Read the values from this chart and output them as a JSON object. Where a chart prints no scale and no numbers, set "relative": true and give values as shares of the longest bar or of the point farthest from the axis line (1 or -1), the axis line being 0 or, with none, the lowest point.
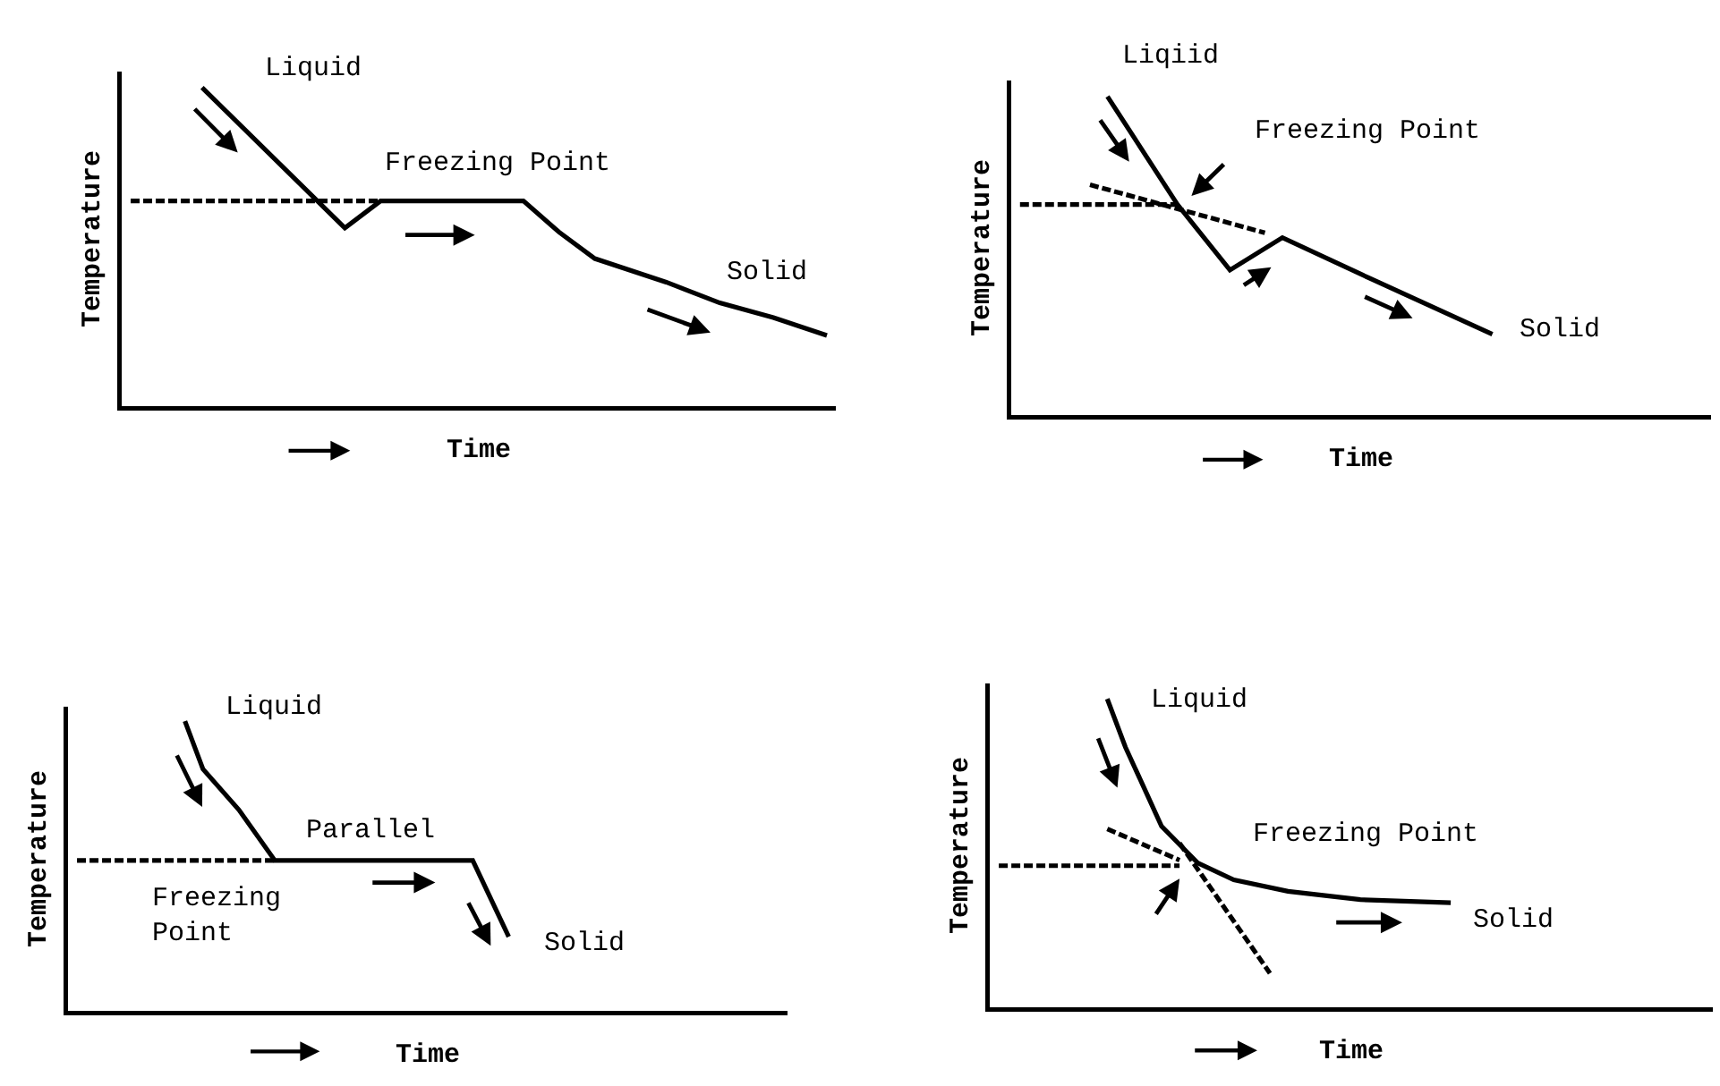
{
  "chart_data": [
    {
      "type": "line",
      "relative": true,
      "xlabel": "Time",
      "ylabel": "Temperature",
      "grid": false,
      "marker": "none",
      "categories": [
        null,
        null,
        null,
        null,
        null,
        null,
        null,
        null,
        null,
        null,
        null,
        null,
        null,
        null,
        null,
        null,
        null,
        null,
        null,
        null,
        null,
        null,
        null,
        null,
        null,
        null,
        null,
        null,
        null,
        null,
        null,
        null,
        null,
        null,
        null,
        null,
        null,
        null,
        null,
        null
      ],
      "series": [
        {
          "color": "#000000",
          "line_style": "solid",
          "values": [
            null,
            null,
            null,
            null,
            1,
            null,
            null,
            null,
            null,
            null,
            null,
            null,
            0.559,
            null,
            0.644,
            null,
            null,
            null,
            null,
            null,
            null,
            null,
            0.644,
            null,
            0.546,
            null,
            0.463,
            null,
            null,
            null,
            0.389,
            null,
            null,
            0.324,
            null,
            null,
            0.278,
            null,
            null,
            0.222
          ]
        },
        {
          "color": "#000000",
          "line_style": "dashed",
          "values": [
            0.644,
            null,
            null,
            null,
            null,
            null,
            null,
            null,
            null,
            null,
            null,
            null,
            null,
            null,
            0.644,
            null,
            null,
            null,
            null,
            null,
            null,
            null,
            null,
            null,
            null,
            null,
            null,
            null,
            null,
            null,
            null,
            null,
            null,
            null,
            null,
            null,
            null,
            null,
            null,
            null
          ]
        }
      ],
      "annotations": [
        "Liquid",
        "Freezing Point",
        "Solid"
      ]
    },
    {
      "type": "line",
      "relative": true,
      "xlabel": "Time",
      "ylabel": "Temperature",
      "grid": false,
      "marker": "none",
      "categories": [
        null,
        null,
        null,
        null,
        null,
        null,
        null,
        null,
        null,
        null,
        null,
        null,
        null,
        null,
        null,
        null,
        null,
        null,
        null,
        null,
        null,
        null,
        null,
        null,
        null,
        null,
        null,
        null,
        null,
        null,
        null,
        null,
        null,
        null,
        null,
        null,
        null,
        null,
        null,
        null
      ],
      "series": [
        {
          "color": "#000000",
          "line_style": "solid",
          "values": [
            null,
            null,
            null,
            null,
            null,
            1,
            null,
            null,
            null,
            0.661,
            null,
            null,
            0.455,
            null,
            null,
            0.557,
            null,
            null,
            null,
            null,
            0.429,
            null,
            null,
            null,
            null,
            null,
            null,
            0.254,
            null,
            null,
            null,
            null,
            null,
            null,
            null,
            null,
            null,
            null,
            null,
            null
          ]
        },
        {
          "color": "#000000",
          "line_style": "dashed",
          "values": [
            0.661,
            null,
            null,
            null,
            null,
            null,
            null,
            null,
            null,
            0.661,
            null,
            null,
            null,
            null,
            null,
            null,
            null,
            null,
            null,
            null,
            null,
            null,
            null,
            null,
            null,
            null,
            null,
            null,
            null,
            null,
            null,
            null,
            null,
            null,
            null,
            null,
            null,
            null,
            null,
            null
          ]
        },
        {
          "color": "#000000",
          "line_style": "dashed",
          "values": [
            null,
            null,
            null,
            null,
            0.723,
            null,
            null,
            null,
            null,
            null,
            null,
            null,
            null,
            null,
            0.572,
            null,
            null,
            null,
            null,
            null,
            null,
            null,
            null,
            null,
            null,
            null,
            null,
            null,
            null,
            null,
            null,
            null,
            null,
            null,
            null,
            null,
            null,
            null,
            null,
            null
          ]
        }
      ],
      "annotations": [
        "Liqiid",
        "Freezing Point",
        "Solid"
      ]
    },
    {
      "type": "line",
      "relative": true,
      "xlabel": "Time",
      "ylabel": "Temperature",
      "grid": false,
      "marker": "none",
      "categories": [
        null,
        null,
        null,
        null,
        null,
        null,
        null,
        null,
        null,
        null,
        null,
        null,
        null,
        null,
        null,
        null,
        null,
        null,
        null,
        null,
        null,
        null,
        null,
        null,
        null,
        null,
        null,
        null,
        null,
        null,
        null,
        null,
        null,
        null,
        null,
        null,
        null,
        null,
        null,
        null
      ],
      "series": [
        {
          "color": "#000000",
          "line_style": "solid",
          "values": [
            null,
            null,
            null,
            null,
            null,
            null,
            1,
            0.835,
            null,
            0.694,
            null,
            0.519,
            null,
            null,
            null,
            null,
            null,
            null,
            null,
            null,
            null,
            null,
            0.519,
            null,
            0.256,
            null,
            null,
            null,
            null,
            null,
            null,
            null,
            null,
            null,
            null,
            null,
            null,
            null,
            null,
            null
          ]
        },
        {
          "color": "#000000",
          "line_style": "dashed",
          "values": [
            0.519,
            null,
            null,
            null,
            null,
            null,
            null,
            null,
            null,
            null,
            null,
            0.519,
            null,
            null,
            null,
            null,
            null,
            null,
            null,
            null,
            null,
            null,
            null,
            null,
            null,
            null,
            null,
            null,
            null,
            null,
            null,
            null,
            null,
            null,
            null,
            null,
            null,
            null,
            null,
            null
          ]
        }
      ],
      "annotations": [
        "Liquid",
        "Parallel",
        "Freezing\nPoint",
        "Solid"
      ]
    },
    {
      "type": "line",
      "relative": true,
      "xlabel": "Time",
      "ylabel": "Temperature",
      "grid": false,
      "marker": "none",
      "categories": [
        null,
        null,
        null,
        null,
        null,
        null,
        null,
        null,
        null,
        null,
        null,
        null,
        null,
        null,
        null,
        null,
        null,
        null,
        null,
        null,
        null,
        null,
        null,
        null,
        null,
        null,
        null,
        null,
        null,
        null,
        null,
        null,
        null,
        null,
        null,
        null,
        null,
        null,
        null,
        null
      ],
      "series": [
        {
          "color": "#000000",
          "line_style": "solid",
          "values": [
            null,
            null,
            null,
            null,
            null,
            null,
            1,
            0.844,
            0.716,
            0.587,
            null,
            0.468,
            null,
            0.413,
            null,
            null,
            0.376,
            null,
            null,
            null,
            0.349,
            null,
            null,
            null,
            null,
            0.339,
            null,
            null,
            null,
            null,
            null,
            null,
            null,
            null,
            null,
            null,
            null,
            null,
            null,
            null
          ]
        },
        {
          "color": "#000000",
          "line_style": "dashed",
          "values": [
            0.459,
            null,
            null,
            null,
            null,
            null,
            null,
            null,
            null,
            null,
            0.459,
            null,
            null,
            null,
            null,
            null,
            null,
            null,
            null,
            null,
            null,
            null,
            null,
            null,
            null,
            null,
            null,
            null,
            null,
            null,
            null,
            null,
            null,
            null,
            null,
            null,
            null,
            null,
            null,
            null
          ]
        },
        {
          "color": "#000000",
          "line_style": "dashed",
          "values": [
            null,
            null,
            null,
            null,
            null,
            null,
            0.578,
            null,
            null,
            null,
            0.477,
            null,
            null,
            null,
            null,
            null,
            null,
            null,
            null,
            null,
            null,
            null,
            null,
            null,
            null,
            null,
            null,
            null,
            null,
            null,
            null,
            null,
            null,
            null,
            null,
            null,
            null,
            null,
            null,
            null
          ]
        },
        {
          "color": "#000000",
          "line_style": "dashed",
          "values": [
            null,
            null,
            null,
            null,
            null,
            null,
            null,
            null,
            null,
            null,
            0.532,
            null,
            null,
            null,
            null,
            0.11,
            null,
            null,
            null,
            null,
            null,
            null,
            null,
            null,
            null,
            null,
            null,
            null,
            null,
            null,
            null,
            null,
            null,
            null,
            null,
            null,
            null,
            null,
            null,
            null
          ]
        }
      ],
      "annotations": [
        "Liquid",
        "Freezing Point",
        "Solid"
      ]
    }
  ]
}
